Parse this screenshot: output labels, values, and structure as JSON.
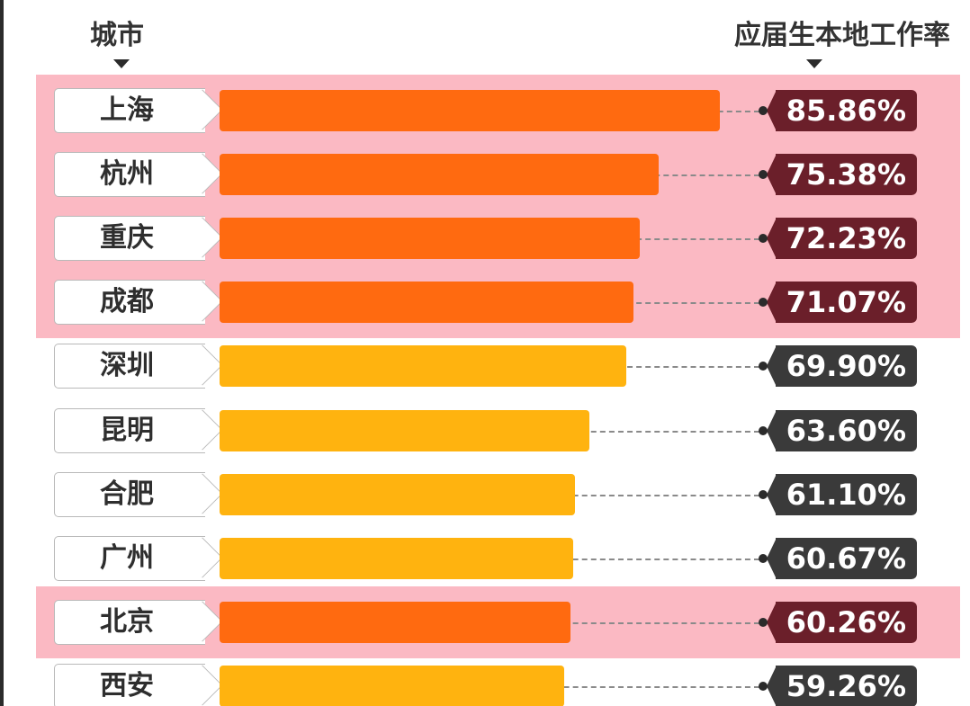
{
  "header": {
    "city_label": "城市",
    "rate_label": "应届生本地工作率"
  },
  "colors": {
    "highlight_band": "#fbb9c3",
    "bar_highlight": "#ff6a10",
    "bar_normal": "#ffb30f",
    "tag_highlight": "#6b1f2a",
    "tag_normal": "#3a3a3a"
  },
  "chart_data": {
    "type": "bar",
    "orientation": "horizontal",
    "title": "",
    "xlabel": "应届生本地工作率",
    "ylabel": "城市",
    "unit": "%",
    "xlim": [
      0,
      100
    ],
    "categories": [
      "上海",
      "杭州",
      "重庆",
      "成都",
      "深圳",
      "昆明",
      "合肥",
      "广州",
      "北京",
      "西安"
    ],
    "values": [
      85.86,
      75.38,
      72.23,
      71.07,
      69.9,
      63.6,
      61.1,
      60.67,
      60.26,
      59.26
    ],
    "value_labels": [
      "85.86%",
      "75.38%",
      "72.23%",
      "71.07%",
      "69.90%",
      "63.60%",
      "61.10%",
      "60.67%",
      "60.26%",
      "59.26%"
    ],
    "highlighted": [
      true,
      true,
      true,
      true,
      false,
      false,
      false,
      false,
      true,
      false
    ]
  }
}
